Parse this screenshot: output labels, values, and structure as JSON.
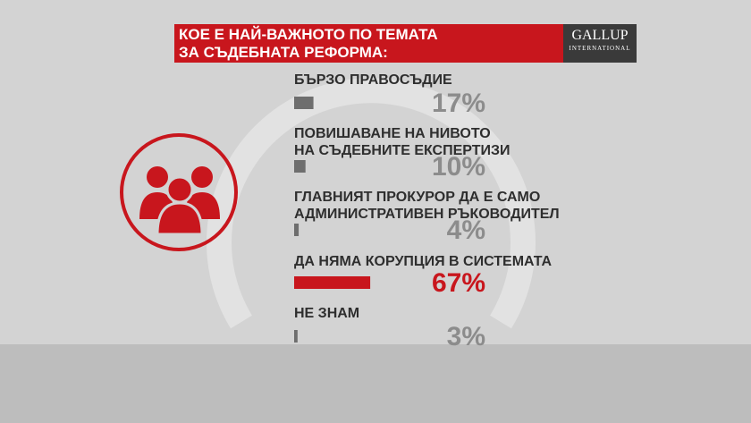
{
  "chart_data": {
    "type": "bar",
    "orientation": "horizontal",
    "title": "КОЕ Е НАЙ-ВАЖНОТО ПО ТЕМАТА\nЗА СЪДЕБНАТА РЕФОРМА:",
    "logo": {
      "name": "GALLUP",
      "subtitle": "INTERNATIONAL"
    },
    "categories": [
      "БЪРЗО ПРАВОСЪДИЕ",
      "ПОВИШАВАНЕ НА НИВОТО\nНА СЪДЕБНИТЕ ЕКСПЕРТИЗИ",
      "ГЛАВНИЯТ ПРОКУРОР ДА Е САМО\nАДМИНИСТРАТИВЕН РЪКОВОДИТЕЛ",
      "ДА НЯМА КОРУПЦИЯ В СИСТЕМАТА",
      "НЕ ЗНАМ"
    ],
    "values": [
      17,
      10,
      4,
      67,
      3
    ],
    "value_labels": [
      "17%",
      "10%",
      "4%",
      "67%",
      "3%"
    ],
    "colors": [
      "#6e6e6e",
      "#6e6e6e",
      "#6e6e6e",
      "#c8161d",
      "#6e6e6e"
    ],
    "label_colors": [
      "#8c8c8c",
      "#8c8c8c",
      "#8c8c8c",
      "#c8161d",
      "#8c8c8c"
    ]
  }
}
